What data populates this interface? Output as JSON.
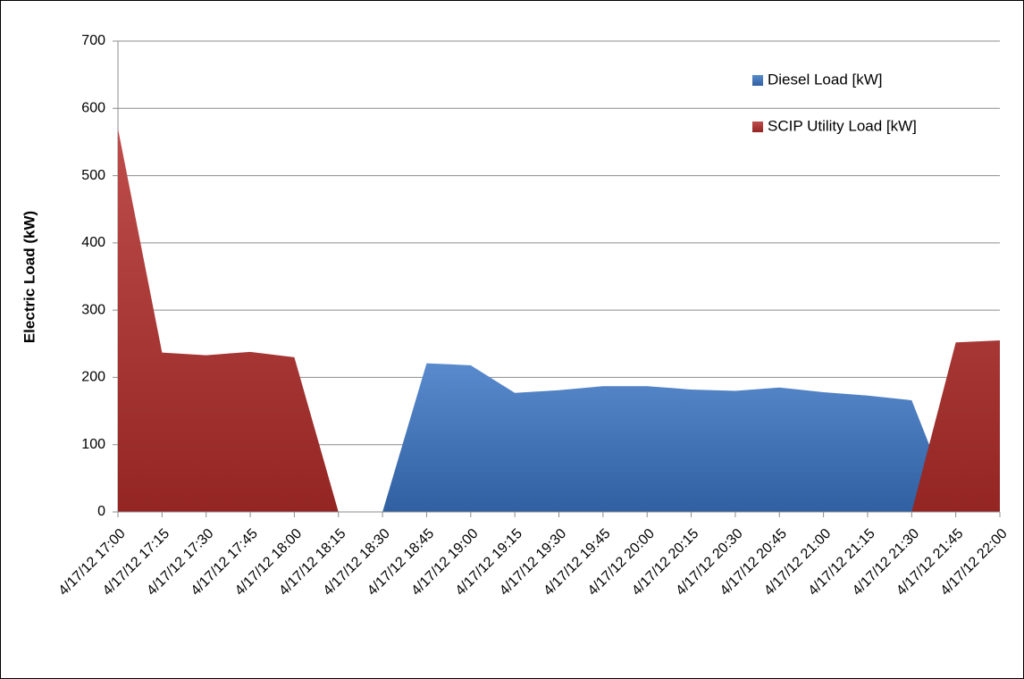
{
  "chart_data": {
    "type": "area",
    "y_label": "Electric Load (kW)",
    "categories": [
      "4/17/12 17:00",
      "4/17/12 17:15",
      "4/17/12 17:30",
      "4/17/12 17:45",
      "4/17/12 18:00",
      "4/17/12 18:15",
      "4/17/12 18:30",
      "4/17/12 18:45",
      "4/17/12 19:00",
      "4/17/12 19:15",
      "4/17/12 19:30",
      "4/17/12 19:45",
      "4/17/12 20:00",
      "4/17/12 20:15",
      "4/17/12 20:30",
      "4/17/12 20:45",
      "4/17/12 21:00",
      "4/17/12 21:15",
      "4/17/12 21:30",
      "4/17/12 21:45",
      "4/17/12 22:00"
    ],
    "series": [
      {
        "name": "Diesel Load [kW]",
        "color": "#3a75c4",
        "values": [
          0,
          0,
          0,
          0,
          0,
          0,
          0,
          221,
          218,
          177,
          181,
          187,
          187,
          182,
          180,
          185,
          178,
          173,
          166,
          0,
          0
        ]
      },
      {
        "name": "SCIP Utility Load [kW]",
        "color": "#b32d2b",
        "values": [
          570,
          237,
          233,
          238,
          230,
          0,
          0,
          0,
          0,
          0,
          0,
          0,
          0,
          0,
          0,
          0,
          0,
          0,
          0,
          252,
          255
        ]
      }
    ],
    "ylim": [
      0,
      700
    ],
    "yticks": [
      0,
      100,
      200,
      300,
      400,
      500,
      600,
      700
    ],
    "grid": true,
    "legend": "top-right"
  }
}
